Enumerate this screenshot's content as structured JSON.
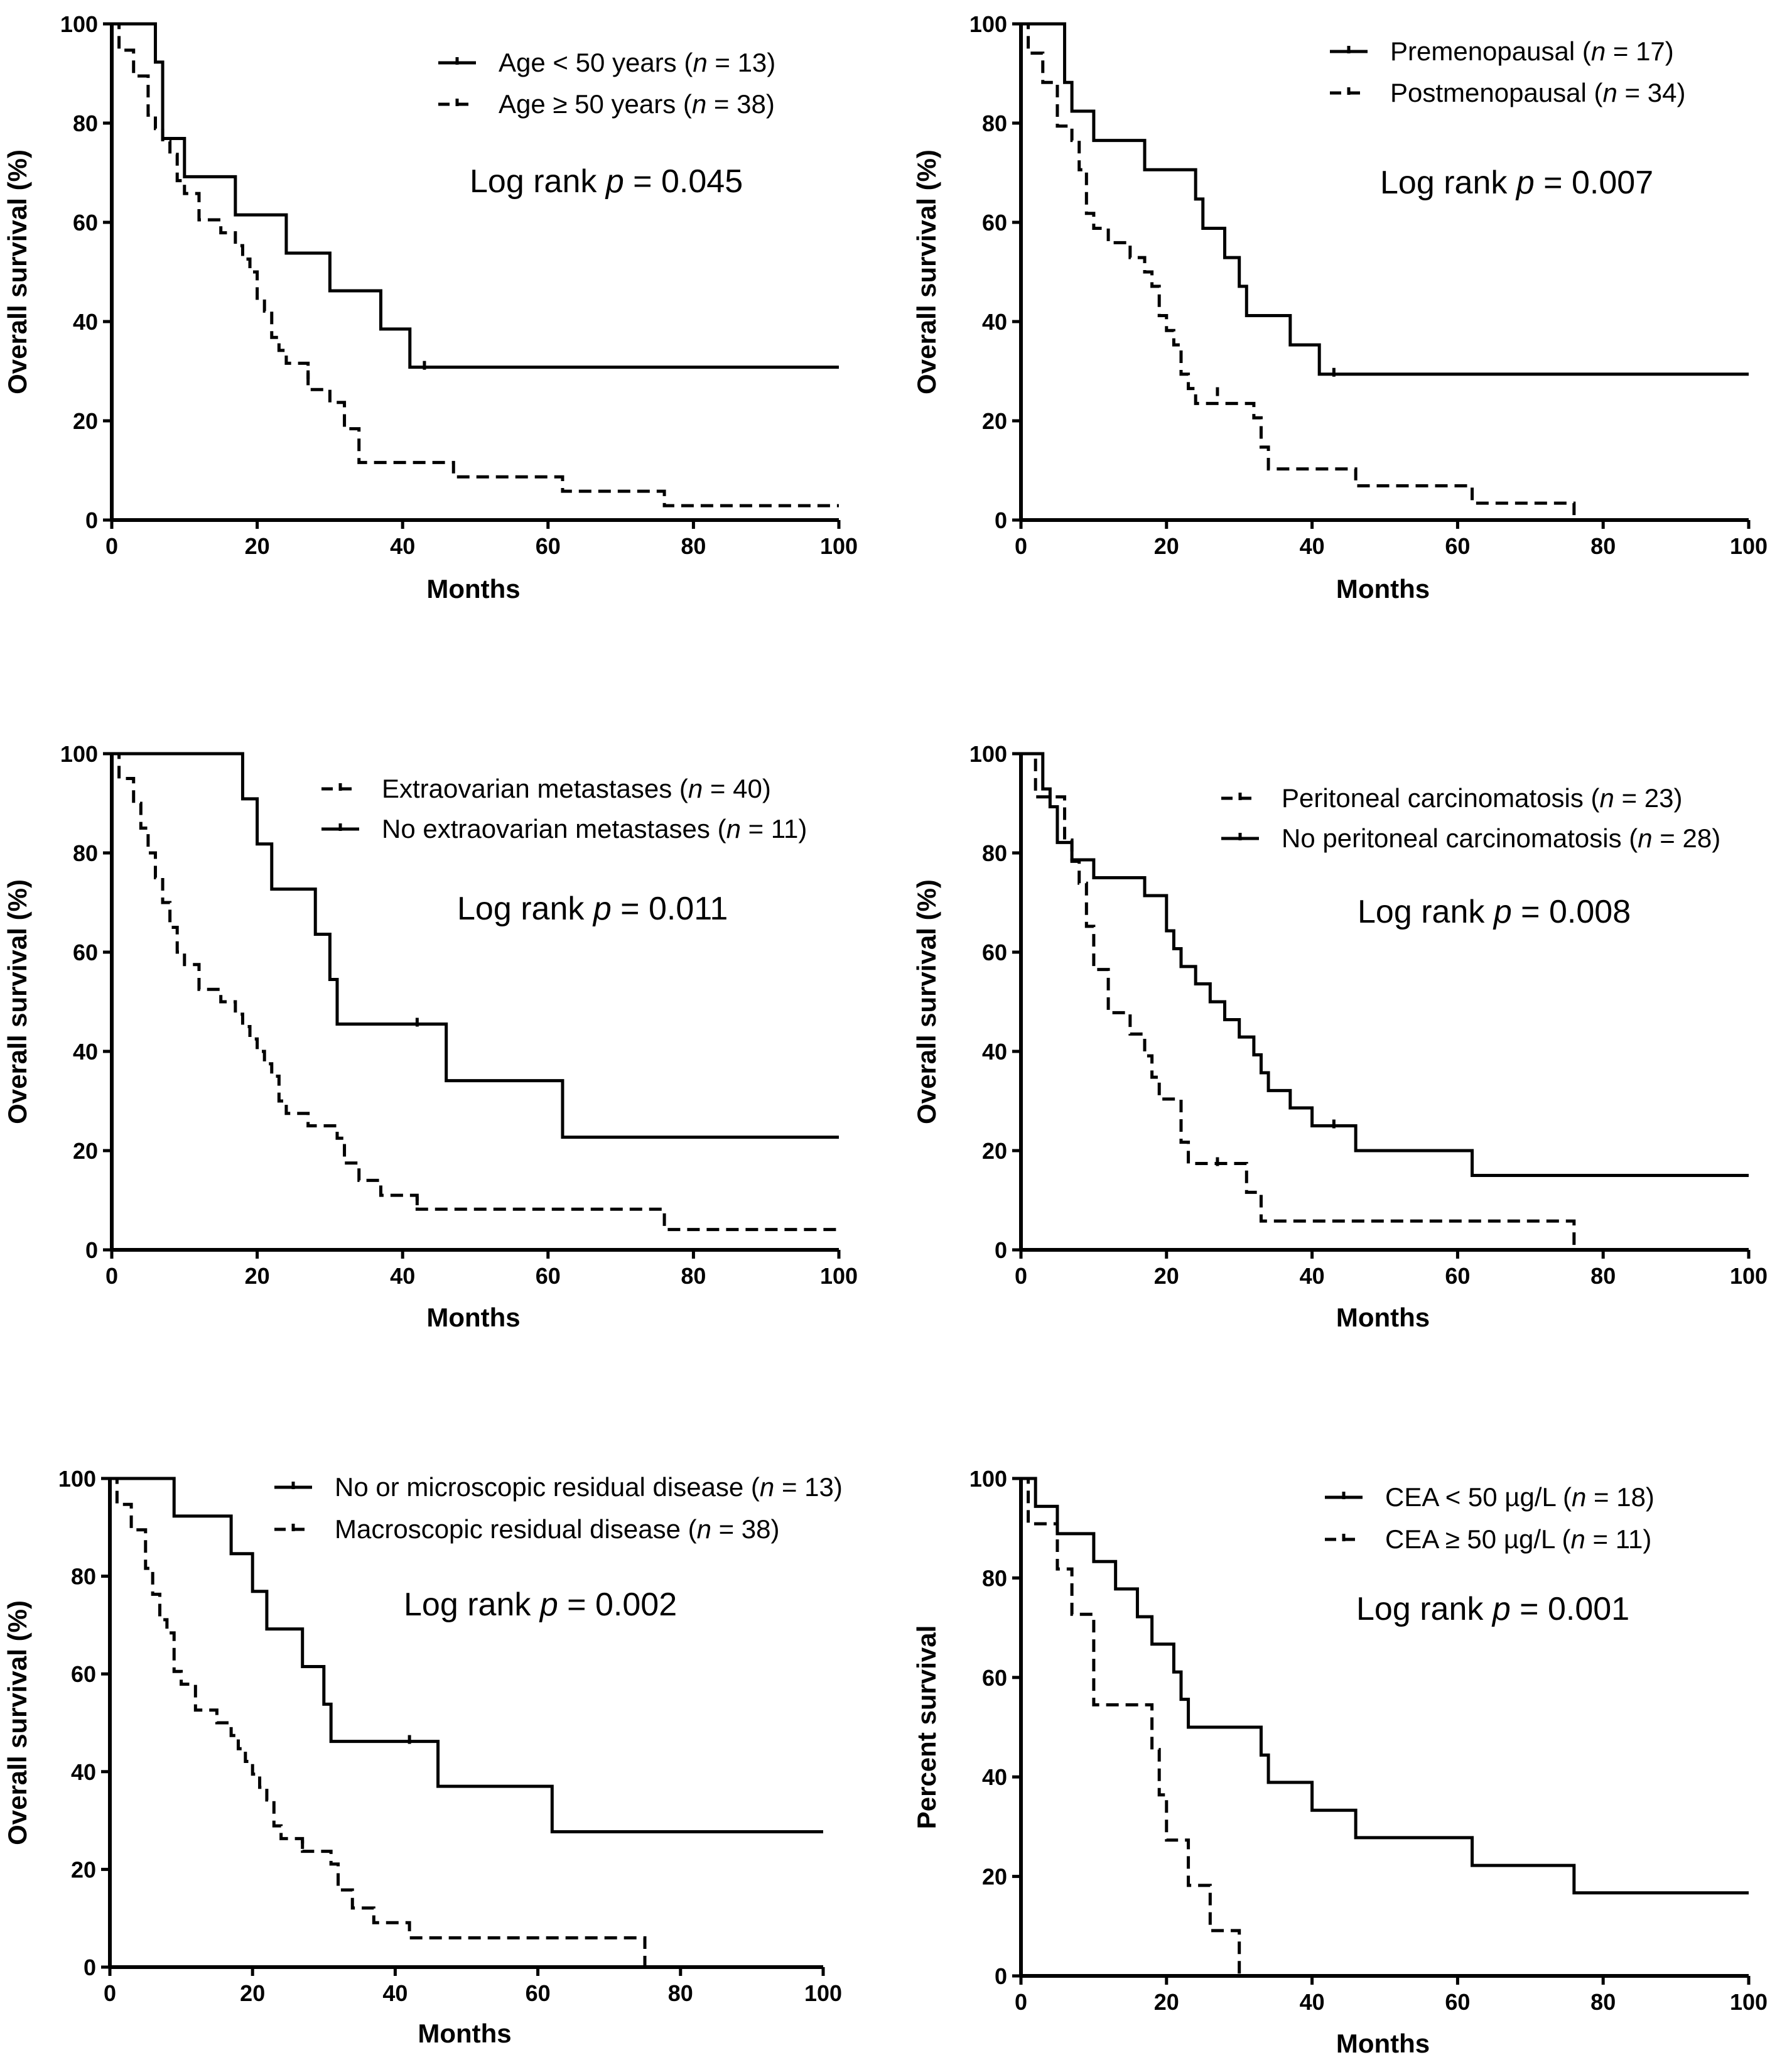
{
  "chart_data": [
    {
      "type": "line",
      "title": "",
      "xlabel": "Months",
      "ylabel": "Overall survival (%)",
      "xlim": [
        0,
        100
      ],
      "ylim": [
        0,
        100
      ],
      "xticks": [
        "0",
        "20",
        "40",
        "60",
        "80",
        "100"
      ],
      "yticks": [
        "0",
        "20",
        "40",
        "60",
        "80",
        "100"
      ],
      "legend_position": "top-right",
      "annotation": {
        "prefix": "Log rank ",
        "p": "p",
        "value": " = 0.045"
      },
      "series": [
        {
          "name": "Age < 50 years",
          "n_label": "n",
          "n_value": " = 13)",
          "style": "solid",
          "x": [
            0,
            6,
            7,
            10,
            17,
            24,
            30,
            37,
            41,
            100
          ],
          "y": [
            100,
            92.3,
            76.9,
            69.2,
            61.5,
            53.8,
            46.2,
            38.5,
            30.8,
            30.8
          ],
          "censored": [
            [
              43,
              30.8
            ]
          ]
        },
        {
          "name": "Age ≥ 50 years",
          "n_label": "n",
          "n_value": " = 38)",
          "style": "dashed",
          "x": [
            0,
            1,
            3,
            5,
            6,
            7,
            8,
            9,
            10,
            12,
            15,
            17,
            18,
            19,
            20,
            21,
            22,
            23,
            24,
            27,
            30,
            32,
            34,
            47,
            62,
            76,
            100
          ],
          "y": [
            100,
            94.7,
            89.5,
            81.6,
            78.9,
            76.3,
            73.7,
            68.4,
            65.8,
            60.5,
            57.9,
            55.3,
            52.6,
            50,
            44.7,
            42.1,
            36.8,
            34.2,
            31.6,
            26.3,
            23.7,
            18.4,
            11.6,
            8.7,
            5.8,
            2.9,
            2.9
          ],
          "censored": [
            [
              27,
              28.9
            ]
          ]
        }
      ]
    },
    {
      "type": "line",
      "title": "",
      "xlabel": "Months",
      "ylabel": "Overall survival (%)",
      "xlim": [
        0,
        100
      ],
      "ylim": [
        0,
        100
      ],
      "xticks": [
        "0",
        "20",
        "40",
        "60",
        "80",
        "100"
      ],
      "yticks": [
        "0",
        "20",
        "40",
        "60",
        "80",
        "100"
      ],
      "legend_position": "top-right",
      "annotation": {
        "prefix": "Log rank ",
        "p": "p",
        "value": " = 0.007"
      },
      "series": [
        {
          "name": "Premenopausal",
          "n_label": "n",
          "n_value": " = 17)",
          "style": "solid",
          "x": [
            0,
            6,
            7,
            10,
            17,
            24,
            25,
            28,
            30,
            31,
            37,
            41,
            100
          ],
          "y": [
            100,
            88.2,
            82.4,
            76.5,
            70.6,
            64.7,
            58.8,
            52.9,
            47.1,
            41.2,
            35.3,
            29.4,
            29.4
          ],
          "censored": [
            [
              43,
              29.4
            ]
          ]
        },
        {
          "name": "Postmenopausal",
          "n_label": "n",
          "n_value": " = 34)",
          "style": "dashed",
          "x": [
            0,
            1,
            3,
            5,
            7,
            8,
            9,
            10,
            12,
            15,
            17,
            18,
            19,
            20,
            21,
            22,
            23,
            24,
            27,
            32,
            33,
            34,
            46,
            62,
            74,
            76
          ],
          "y": [
            100,
            94.1,
            88.2,
            79.4,
            76.5,
            70.6,
            61.8,
            58.8,
            55.9,
            52.9,
            50,
            47.1,
            41.2,
            38.2,
            35.3,
            29.4,
            26.5,
            23.5,
            23.5,
            20.6,
            14.7,
            10.3,
            6.9,
            3.4,
            3.4,
            0
          ],
          "censored": [
            [
              27,
              25.5
            ]
          ]
        }
      ]
    },
    {
      "type": "line",
      "title": "",
      "xlabel": "Months",
      "ylabel": "Overall survival (%)",
      "xlim": [
        0,
        100
      ],
      "ylim": [
        0,
        100
      ],
      "xticks": [
        "0",
        "20",
        "40",
        "60",
        "80",
        "100"
      ],
      "yticks": [
        "0",
        "20",
        "40",
        "60",
        "80",
        "100"
      ],
      "legend_position": "top-right",
      "annotation": {
        "prefix": "Log rank ",
        "p": "p",
        "value": " = 0.011"
      },
      "series": [
        {
          "name": "Extraovarian metastases",
          "n_label": "n",
          "n_value": " = 40)",
          "style": "dashed",
          "x": [
            0,
            1,
            3,
            4,
            5,
            6,
            7,
            8,
            9,
            10,
            12,
            15,
            17,
            18,
            19,
            20,
            21,
            22,
            23,
            24,
            27,
            31,
            32,
            34,
            37,
            42,
            76,
            100
          ],
          "y": [
            100,
            95,
            90,
            85,
            80,
            75,
            70,
            65,
            60,
            57.5,
            52.5,
            50,
            47.5,
            45,
            42.5,
            40,
            37.5,
            35,
            30,
            27.5,
            25,
            22.5,
            17.5,
            14,
            11,
            8.2,
            4.1,
            4.1
          ],
          "censored": [
            [
              42,
              9.5
            ]
          ]
        },
        {
          "name": "No extraovarian metastases",
          "n_label": "n",
          "n_value": " = 11)",
          "style": "solid",
          "x": [
            0,
            18,
            20,
            22,
            28,
            30,
            31,
            46,
            62,
            100
          ],
          "y": [
            100,
            90.9,
            81.8,
            72.7,
            63.6,
            54.5,
            45.5,
            34.1,
            22.7,
            22.7
          ],
          "censored": [
            [
              42,
              45.5
            ]
          ]
        }
      ]
    },
    {
      "type": "line",
      "title": "",
      "xlabel": "Months",
      "ylabel": "Overall survival (%)",
      "xlim": [
        0,
        100
      ],
      "ylim": [
        0,
        100
      ],
      "xticks": [
        "0",
        "20",
        "40",
        "60",
        "80",
        "100"
      ],
      "yticks": [
        "0",
        "20",
        "40",
        "60",
        "80",
        "100"
      ],
      "legend_position": "top-right",
      "annotation": {
        "prefix": "Log rank ",
        "p": "p",
        "value": " = 0.008"
      },
      "series": [
        {
          "name": "Peritoneal carcinomatosis",
          "n_label": "n",
          "n_value": " = 23)",
          "style": "dashed",
          "x": [
            0,
            2,
            4,
            6,
            7,
            8,
            9,
            10,
            12,
            15,
            17,
            18,
            19,
            22,
            23,
            24,
            31,
            33,
            76
          ],
          "y": [
            100,
            91.3,
            91.3,
            82.6,
            78.3,
            73.9,
            65.2,
            56.5,
            47.8,
            43.5,
            39.1,
            34.8,
            30.4,
            21.7,
            17.4,
            17.4,
            11.6,
            5.8,
            0
          ],
          "censored": [
            [
              27,
              17.4
            ]
          ]
        },
        {
          "name": "No peritoneal carcinomatosis",
          "n_label": "n",
          "n_value": " = 28)",
          "style": "solid",
          "x": [
            0,
            3,
            4,
            5,
            7,
            10,
            17,
            20,
            21,
            22,
            24,
            26,
            28,
            30,
            32,
            33,
            34,
            37,
            40,
            46,
            62,
            100
          ],
          "y": [
            100,
            92.9,
            89.3,
            82.1,
            78.6,
            75,
            71.4,
            64.3,
            60.7,
            57.1,
            53.6,
            50,
            46.4,
            42.9,
            39.3,
            35.7,
            32.1,
            28.6,
            25,
            20,
            15,
            15
          ],
          "censored": [
            [
              43,
              25
            ]
          ]
        }
      ]
    },
    {
      "type": "line",
      "title": "",
      "xlabel": "Months",
      "ylabel": "Overall survival (%)",
      "xlim": [
        0,
        100
      ],
      "ylim": [
        0,
        100
      ],
      "xticks": [
        "0",
        "20",
        "40",
        "60",
        "80",
        "100"
      ],
      "yticks": [
        "0",
        "20",
        "40",
        "60",
        "80",
        "100"
      ],
      "legend_position": "top-right",
      "annotation": {
        "prefix": "Log rank ",
        "p": "p",
        "value": " = 0.002"
      },
      "series": [
        {
          "name": "No or microscopic residual disease",
          "n_label": "n",
          "n_value": " = 13)",
          "style": "solid",
          "x": [
            0,
            9,
            17,
            20,
            22,
            27,
            30,
            31,
            46,
            62,
            100
          ],
          "y": [
            100,
            92.3,
            84.6,
            76.9,
            69.2,
            61.5,
            53.8,
            46.2,
            37,
            27.7,
            27.7
          ],
          "censored": [
            [
              42,
              46.2
            ]
          ]
        },
        {
          "name": "Macroscopic residual disease",
          "n_label": "n",
          "n_value": " = 38)",
          "style": "dashed",
          "x": [
            0,
            1,
            3,
            5,
            6,
            7,
            8,
            9,
            10,
            12,
            15,
            17,
            18,
            19,
            20,
            21,
            22,
            23,
            24,
            27,
            31,
            32,
            34,
            37,
            42,
            75
          ],
          "y": [
            100,
            94.7,
            89.5,
            81.6,
            76.3,
            71.1,
            68.4,
            60.5,
            57.9,
            52.6,
            50,
            47.4,
            44.7,
            42.1,
            39.5,
            36.8,
            34.2,
            28.9,
            26.3,
            23.7,
            21.1,
            15.8,
            12.1,
            9.1,
            6,
            0
          ],
          "censored": [
            [
              27,
              24.7
            ]
          ]
        }
      ]
    },
    {
      "type": "line",
      "title": "",
      "xlabel": "Months",
      "ylabel": "Percent survival",
      "xlim": [
        0,
        100
      ],
      "ylim": [
        0,
        100
      ],
      "xticks": [
        "0",
        "20",
        "40",
        "60",
        "80",
        "100"
      ],
      "yticks": [
        "0",
        "20",
        "40",
        "60",
        "80",
        "100"
      ],
      "legend_position": "top-right",
      "annotation": {
        "prefix": "Log rank ",
        "p": "p",
        "value": " = 0.001"
      },
      "series": [
        {
          "name": "CEA < 50 µg/L",
          "n_label": "n",
          "n_value": " = 18)",
          "style": "solid",
          "x": [
            0,
            2,
            5,
            10,
            13,
            16,
            18,
            21,
            22,
            23,
            33,
            34,
            37,
            40,
            46,
            62,
            76,
            100
          ],
          "y": [
            100,
            94.4,
            88.9,
            83.3,
            77.8,
            72.2,
            66.7,
            61.1,
            55.6,
            50,
            44.4,
            38.9,
            38.9,
            33.3,
            27.8,
            22.2,
            16.7,
            16.7
          ],
          "censored": []
        },
        {
          "name": "CEA ≥ 50 µg/L",
          "n_label": "n",
          "n_value": " = 11)",
          "style": "dashed",
          "x": [
            0,
            1,
            5,
            7,
            10,
            18,
            19,
            20,
            23,
            26,
            30
          ],
          "y": [
            100,
            90.9,
            81.8,
            72.7,
            54.5,
            45.5,
            36.4,
            27.3,
            18.2,
            9.1,
            0
          ],
          "censored": []
        }
      ]
    }
  ]
}
